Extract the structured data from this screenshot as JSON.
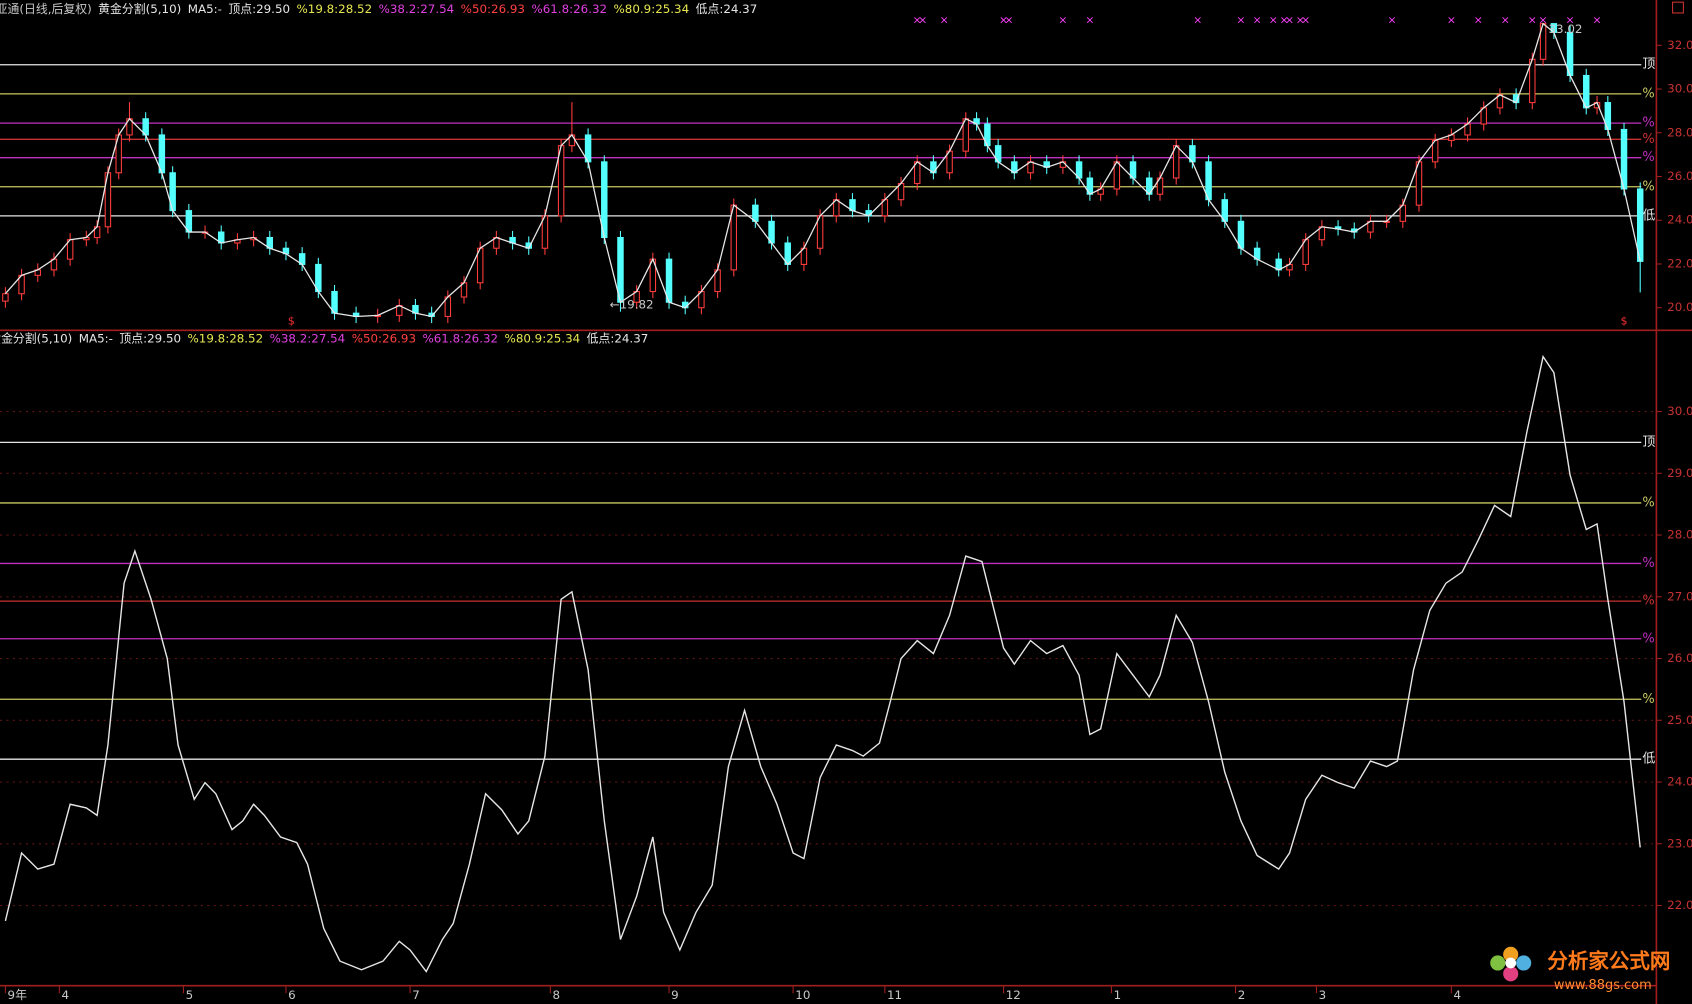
{
  "chart_data": [
    {
      "type": "candlestick",
      "indicator_labels": [
        {
          "text": "亚通(日线,后复权)",
          "color": "#c8c8c8"
        },
        {
          "text": "黄金分割(5,10)",
          "color": "#e6e6e6"
        },
        {
          "text": "MA5:-",
          "color": "#e6e6e6"
        },
        {
          "text": "顶点:29.50",
          "color": "#e6e6e6"
        },
        {
          "text": "%19.8:28.52",
          "color": "#e6e650"
        },
        {
          "text": "%38.2:27.54",
          "color": "#e040e0"
        },
        {
          "text": "%50:26.93",
          "color": "#ff4040"
        },
        {
          "text": "%61.8:26.32",
          "color": "#e040e0"
        },
        {
          "text": "%80.9:25.34",
          "color": "#e6e650"
        },
        {
          "text": "低点:24.37",
          "color": "#e6e6e6"
        }
      ],
      "x": [
        1,
        4,
        7,
        10,
        13,
        16,
        18,
        20,
        22,
        24,
        27,
        30,
        32,
        35,
        38,
        41,
        44,
        47,
        50,
        53,
        56,
        59,
        62,
        66,
        70,
        74,
        77,
        80,
        83,
        86,
        89,
        92,
        95,
        98,
        101,
        104,
        106,
        109,
        112,
        115,
        118,
        121,
        124,
        127,
        130,
        133,
        136,
        140,
        143,
        146,
        149,
        152,
        155,
        158,
        161,
        164,
        167,
        170,
        173,
        176,
        179,
        181,
        183,
        185,
        188,
        191,
        194,
        197,
        200,
        202,
        204,
        207,
        210,
        213,
        215,
        218,
        221,
        224,
        227,
        230,
        233,
        237,
        239,
        242,
        245,
        248,
        251,
        254,
        257,
        260,
        263,
        266,
        269,
        272,
        275,
        278,
        281,
        284,
        286,
        288,
        291,
        294,
        296,
        298,
        301,
        304
      ],
      "open": [
        20.3,
        20.64,
        21.48,
        21.73,
        22.22,
        23.11,
        23.21,
        23.7,
        26.17,
        27.9,
        28.64,
        27.9,
        26.17,
        24.44,
        23.46,
        23.46,
        22.96,
        23.11,
        23.21,
        22.72,
        22.47,
        21.98,
        20.74,
        19.75,
        19.6,
        19.65,
        20.1,
        19.75,
        19.6,
        20.49,
        21.14,
        22.72,
        23.21,
        22.96,
        22.72,
        24.2,
        27.41,
        27.9,
        26.67,
        23.21,
        20.25,
        20.74,
        22.22,
        20.25,
        20.0,
        20.74,
        21.73,
        24.69,
        23.95,
        22.96,
        21.98,
        22.72,
        24.2,
        24.94,
        24.44,
        24.2,
        24.94,
        25.68,
        26.67,
        26.17,
        27.16,
        28.64,
        28.4,
        27.41,
        26.67,
        26.17,
        26.67,
        26.42,
        26.67,
        25.93,
        25.19,
        25.43,
        26.67,
        25.93,
        25.19,
        25.93,
        27.41,
        26.67,
        24.94,
        23.95,
        22.72,
        22.22,
        21.73,
        21.98,
        23.11,
        23.7,
        23.6,
        23.46,
        23.95,
        23.95,
        24.69,
        26.67,
        27.65,
        27.9,
        28.4,
        29.14,
        29.73,
        29.38,
        31.36,
        32.99,
        32.59,
        30.62,
        29.14,
        29.38,
        28.15,
        25.43
      ],
      "high": [
        20.94,
        21.78,
        22.03,
        22.52,
        23.41,
        23.51,
        24.0,
        26.47,
        28.2,
        29.4,
        28.94,
        28.2,
        26.47,
        24.74,
        23.76,
        23.76,
        23.41,
        23.51,
        23.51,
        23.02,
        22.77,
        22.28,
        21.04,
        20.05,
        19.95,
        20.4,
        20.4,
        20.05,
        20.79,
        21.44,
        23.02,
        23.51,
        23.51,
        23.26,
        24.5,
        27.71,
        29.4,
        28.2,
        26.97,
        23.51,
        21.04,
        22.52,
        22.52,
        20.55,
        21.04,
        22.03,
        24.99,
        24.99,
        24.25,
        23.26,
        23.02,
        24.5,
        25.24,
        25.24,
        24.74,
        25.24,
        25.98,
        26.97,
        26.97,
        27.46,
        28.94,
        28.94,
        28.7,
        27.71,
        26.97,
        26.97,
        26.97,
        26.97,
        26.97,
        26.23,
        25.73,
        26.97,
        26.97,
        26.23,
        26.23,
        27.71,
        27.71,
        26.97,
        25.24,
        24.25,
        23.02,
        22.52,
        22.28,
        23.41,
        24.0,
        24.0,
        23.9,
        24.25,
        24.25,
        24.99,
        26.97,
        27.95,
        28.2,
        28.7,
        29.44,
        30.03,
        30.03,
        31.66,
        33.02,
        33.0,
        32.89,
        30.92,
        29.68,
        29.68,
        28.45,
        25.73
      ],
      "low": [
        20.0,
        20.34,
        21.18,
        21.43,
        21.92,
        22.81,
        22.91,
        23.4,
        25.87,
        27.6,
        27.6,
        25.87,
        24.14,
        23.16,
        23.16,
        22.66,
        22.66,
        22.81,
        22.42,
        22.17,
        21.68,
        20.44,
        19.45,
        19.3,
        19.3,
        19.35,
        19.45,
        19.3,
        19.3,
        20.19,
        20.84,
        22.42,
        22.66,
        22.42,
        22.42,
        23.9,
        27.11,
        26.37,
        22.91,
        19.82,
        19.95,
        20.44,
        19.95,
        19.7,
        19.7,
        20.44,
        21.43,
        23.65,
        22.66,
        21.68,
        21.68,
        22.42,
        23.9,
        24.14,
        23.9,
        23.9,
        24.64,
        25.38,
        25.87,
        25.87,
        26.86,
        28.1,
        27.11,
        26.37,
        25.87,
        25.87,
        26.12,
        26.12,
        25.63,
        24.89,
        24.89,
        25.13,
        25.63,
        24.89,
        24.89,
        25.63,
        26.37,
        24.64,
        23.65,
        22.42,
        21.92,
        21.43,
        21.43,
        21.68,
        22.81,
        23.3,
        23.16,
        23.16,
        23.65,
        23.65,
        24.39,
        26.37,
        27.35,
        27.6,
        28.1,
        28.84,
        29.08,
        29.08,
        31.06,
        32.29,
        30.32,
        28.84,
        28.84,
        27.85,
        25.13,
        20.7
      ],
      "close": [
        20.64,
        21.48,
        21.73,
        22.22,
        23.11,
        23.21,
        23.7,
        26.17,
        27.9,
        28.64,
        27.9,
        26.17,
        24.44,
        23.46,
        23.46,
        22.96,
        23.11,
        23.21,
        22.72,
        22.47,
        21.98,
        20.74,
        19.75,
        19.6,
        19.65,
        20.1,
        19.75,
        19.6,
        20.49,
        21.14,
        22.72,
        23.21,
        22.96,
        22.72,
        24.2,
        27.41,
        27.9,
        26.67,
        23.21,
        20.25,
        20.74,
        22.22,
        20.25,
        20.0,
        20.74,
        21.73,
        24.69,
        23.95,
        22.96,
        21.98,
        22.72,
        24.2,
        24.94,
        24.44,
        24.2,
        24.94,
        25.68,
        26.67,
        26.17,
        27.16,
        28.64,
        28.4,
        27.41,
        26.67,
        26.17,
        26.67,
        26.42,
        26.67,
        25.93,
        25.19,
        25.43,
        26.67,
        25.93,
        25.19,
        25.93,
        27.41,
        26.67,
        24.94,
        23.95,
        22.72,
        22.22,
        21.73,
        21.98,
        23.11,
        23.7,
        23.6,
        23.46,
        23.95,
        23.95,
        24.69,
        26.67,
        27.65,
        27.9,
        28.4,
        29.14,
        29.73,
        29.38,
        31.36,
        32.99,
        32.59,
        30.62,
        29.14,
        29.38,
        28.15,
        25.43,
        22.12
      ],
      "up_color": "#ff3c3c",
      "down_color": "#54ffff",
      "line_color": "#e6e6e6",
      "xlim": [
        0,
        307
      ],
      "ylim": [
        19.36,
        33.38
      ],
      "yticks": [
        {
          "value": 20,
          "label": "20.0"
        },
        {
          "value": 22,
          "label": "22.0"
        },
        {
          "value": 24,
          "label": "24.0"
        },
        {
          "value": 26,
          "label": "26.0"
        },
        {
          "value": 28,
          "label": "28.0"
        },
        {
          "value": 30,
          "label": "30.0"
        },
        {
          "value": 32,
          "label": "32.0"
        }
      ],
      "grid": false,
      "levels": [
        {
          "value": 31.11,
          "color": "#e6e6e6",
          "label": "顶"
        },
        {
          "value": 29.78,
          "color": "#c8c864",
          "label": "%"
        },
        {
          "value": 28.44,
          "color": "#c030c0",
          "label": "%"
        },
        {
          "value": 27.7,
          "color": "#c83232",
          "label": "%"
        },
        {
          "value": 26.86,
          "color": "#c030c0",
          "label": "%"
        },
        {
          "value": 25.53,
          "color": "#c8c864",
          "label": "%"
        },
        {
          "value": 24.2,
          "color": "#e6e6e6",
          "label": "低"
        }
      ],
      "annotations": [
        {
          "text": "33.02",
          "x": 287,
          "y": 33.02
        },
        {
          "text": "←19.82",
          "x": 113,
          "y": 19.82
        }
      ],
      "signals": [
        {
          "text": "×",
          "color": "#ff40ff",
          "position": "top",
          "x": [
            170,
            171,
            175,
            186,
            187,
            197,
            202,
            222,
            230,
            233,
            236,
            238,
            239,
            241,
            242,
            258,
            269,
            274,
            279,
            284,
            286,
            291,
            296
          ]
        },
        {
          "text": "$",
          "color": "#ff3030",
          "position": "bottom",
          "x": [
            54,
            301
          ]
        }
      ]
    },
    {
      "type": "line",
      "indicator_labels": [
        {
          "text": "黄金分割(5,10)",
          "color": "#e6e6e6"
        },
        {
          "text": "MA5:-",
          "color": "#e6e6e6"
        },
        {
          "text": "顶点:29.50",
          "color": "#e6e6e6"
        },
        {
          "text": "%19.8:28.52",
          "color": "#e6e650"
        },
        {
          "text": "%38.2:27.54",
          "color": "#e040e0"
        },
        {
          "text": "%50:26.93",
          "color": "#ff4040"
        },
        {
          "text": "%61.8:26.32",
          "color": "#e040e0"
        },
        {
          "text": "%80.9:25.34",
          "color": "#e6e650"
        },
        {
          "text": "低点:24.37",
          "color": "#e6e6e6"
        }
      ],
      "series": [
        {
          "color": "#e6e6e6",
          "x": [
            1,
            4,
            7,
            10,
            13,
            16,
            18,
            20,
            23,
            25,
            28,
            31,
            33,
            36,
            38,
            40,
            43,
            45,
            47,
            49,
            52,
            55,
            57,
            60,
            63,
            67,
            71,
            74,
            76,
            79,
            82,
            84,
            87,
            90,
            93,
            96,
            98,
            101,
            104,
            106,
            109,
            112,
            115,
            118,
            121,
            123,
            126,
            129,
            132,
            135,
            138,
            141,
            144,
            147,
            149,
            152,
            155,
            158,
            160,
            163,
            165,
            167,
            170,
            173,
            176,
            179,
            182,
            184,
            186,
            188,
            191,
            194,
            197,
            200,
            202,
            204,
            207,
            210,
            213,
            215,
            218,
            221,
            224,
            227,
            230,
            233,
            237,
            239,
            242,
            245,
            248,
            251,
            254,
            257,
            259,
            262,
            265,
            268,
            271,
            274,
            277,
            280,
            283,
            286,
            288,
            291,
            294,
            296,
            298,
            301,
            304
          ],
          "values": [
            21.75,
            22.85,
            22.59,
            22.67,
            23.64,
            23.58,
            23.46,
            24.6,
            27.22,
            27.74,
            26.96,
            26.0,
            24.6,
            23.72,
            23.99,
            23.81,
            23.23,
            23.37,
            23.64,
            23.46,
            23.11,
            23.02,
            22.67,
            21.63,
            21.1,
            20.96,
            21.1,
            21.42,
            21.28,
            20.93,
            21.45,
            21.71,
            22.67,
            23.81,
            23.55,
            23.16,
            23.37,
            24.42,
            26.96,
            27.08,
            25.82,
            23.37,
            21.45,
            22.15,
            23.11,
            21.89,
            21.28,
            21.89,
            22.33,
            24.25,
            25.16,
            24.25,
            23.64,
            22.85,
            22.76,
            24.07,
            24.6,
            24.51,
            24.42,
            24.63,
            25.3,
            26.0,
            26.29,
            26.08,
            26.7,
            27.66,
            27.57,
            26.87,
            26.17,
            25.91,
            26.29,
            26.08,
            26.21,
            25.73,
            24.77,
            24.86,
            26.08,
            25.73,
            25.38,
            25.73,
            26.7,
            26.26,
            25.3,
            24.16,
            23.37,
            22.81,
            22.59,
            22.85,
            23.72,
            24.11,
            23.99,
            23.9,
            24.34,
            24.25,
            24.34,
            25.82,
            26.78,
            27.22,
            27.4,
            27.92,
            28.48,
            28.3,
            29.67,
            30.89,
            30.63,
            28.97,
            28.09,
            28.18,
            26.96,
            25.3,
            22.94
          ]
        }
      ],
      "xlim": [
        0,
        307
      ],
      "ylim": [
        20.72,
        31.07
      ],
      "yticks": [
        {
          "value": 22,
          "label": "22.0"
        },
        {
          "value": 23,
          "label": "23.0"
        },
        {
          "value": 24,
          "label": "24.0"
        },
        {
          "value": 25,
          "label": "25.0"
        },
        {
          "value": 26,
          "label": "26.0"
        },
        {
          "value": 27,
          "label": "27.0"
        },
        {
          "value": 28,
          "label": "28.0"
        },
        {
          "value": 29,
          "label": "29.0"
        },
        {
          "value": 30,
          "label": "30.0"
        }
      ],
      "xticks": [
        {
          "value": 1,
          "label": "9年"
        },
        {
          "value": 11,
          "label": "4"
        },
        {
          "value": 34,
          "label": "5"
        },
        {
          "value": 53,
          "label": "6"
        },
        {
          "value": 76,
          "label": "7"
        },
        {
          "value": 102,
          "label": "8"
        },
        {
          "value": 124,
          "label": "9"
        },
        {
          "value": 147,
          "label": "10"
        },
        {
          "value": 164,
          "label": "11"
        },
        {
          "value": 186,
          "label": "12"
        },
        {
          "value": 206,
          "label": "1"
        },
        {
          "value": 229,
          "label": "2"
        },
        {
          "value": 244,
          "label": "3"
        },
        {
          "value": 269,
          "label": "4"
        }
      ],
      "grid": true,
      "levels": [
        {
          "value": 29.5,
          "color": "#e6e6e6",
          "label": "顶"
        },
        {
          "value": 28.52,
          "color": "#c8c864",
          "label": "%"
        },
        {
          "value": 27.54,
          "color": "#c030c0",
          "label": "%"
        },
        {
          "value": 26.93,
          "color": "#c83232",
          "label": "%"
        },
        {
          "value": 26.32,
          "color": "#c030c0",
          "label": "%"
        },
        {
          "value": 25.34,
          "color": "#c8c864",
          "label": "%"
        },
        {
          "value": 24.37,
          "color": "#e6e6e6",
          "label": "低"
        }
      ]
    }
  ],
  "watermark": {
    "title": "分析家公式网",
    "url": "www.88gs.com"
  }
}
